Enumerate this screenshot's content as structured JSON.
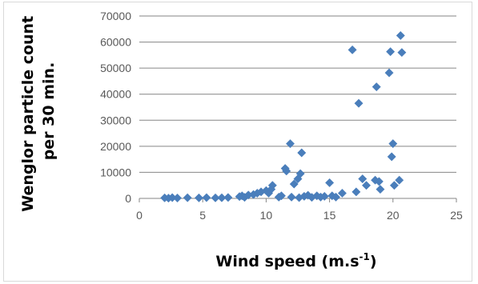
{
  "chart_data": {
    "type": "scatter",
    "title": "",
    "xlabel": "Wind speed (m.s-1)",
    "xlabel_parts": {
      "main": "Wind speed (m.s",
      "sup": "-1",
      "close": ")"
    },
    "ylabel_lines": [
      "Wenglor particle count",
      "per 30 min."
    ],
    "xlim": [
      0,
      25
    ],
    "ylim": [
      0,
      70000
    ],
    "xticks": [
      0,
      5,
      10,
      15,
      20,
      25
    ],
    "yticks": [
      0,
      10000,
      20000,
      30000,
      40000,
      50000,
      60000,
      70000
    ],
    "xtick_labels": [
      "0",
      "5",
      "10",
      "15",
      "20",
      "25"
    ],
    "ytick_labels": [
      "0",
      "10000",
      "20000",
      "30000",
      "40000",
      "50000",
      "60000",
      "70000"
    ],
    "grid": "horizontal",
    "legend": "none",
    "marker": "diamond",
    "marker_color": "#4a7ebb",
    "gridline_color": "#868686",
    "points": [
      {
        "x": 2.0,
        "y": 200
      },
      {
        "x": 2.3,
        "y": 100
      },
      {
        "x": 2.6,
        "y": 300
      },
      {
        "x": 3.0,
        "y": 150
      },
      {
        "x": 3.8,
        "y": 250
      },
      {
        "x": 4.7,
        "y": 200
      },
      {
        "x": 5.3,
        "y": 300
      },
      {
        "x": 6.0,
        "y": 200
      },
      {
        "x": 6.5,
        "y": 250
      },
      {
        "x": 7.0,
        "y": 350
      },
      {
        "x": 7.9,
        "y": 700
      },
      {
        "x": 8.1,
        "y": 1000
      },
      {
        "x": 8.3,
        "y": 400
      },
      {
        "x": 8.6,
        "y": 1300
      },
      {
        "x": 9.0,
        "y": 1500
      },
      {
        "x": 9.3,
        "y": 2000
      },
      {
        "x": 9.6,
        "y": 2500
      },
      {
        "x": 10.0,
        "y": 3000
      },
      {
        "x": 10.2,
        "y": 2000
      },
      {
        "x": 10.5,
        "y": 5000
      },
      {
        "x": 10.4,
        "y": 3500
      },
      {
        "x": 11.0,
        "y": 500
      },
      {
        "x": 11.2,
        "y": 1000
      },
      {
        "x": 11.5,
        "y": 11500
      },
      {
        "x": 11.6,
        "y": 10500
      },
      {
        "x": 11.9,
        "y": 21000
      },
      {
        "x": 12.0,
        "y": 500
      },
      {
        "x": 12.2,
        "y": 5500
      },
      {
        "x": 12.5,
        "y": 7500
      },
      {
        "x": 12.7,
        "y": 9500
      },
      {
        "x": 12.8,
        "y": 17500
      },
      {
        "x": 12.6,
        "y": 300
      },
      {
        "x": 13.0,
        "y": 800
      },
      {
        "x": 13.3,
        "y": 1200
      },
      {
        "x": 13.6,
        "y": 400
      },
      {
        "x": 14.0,
        "y": 1000
      },
      {
        "x": 14.3,
        "y": 500
      },
      {
        "x": 14.6,
        "y": 800
      },
      {
        "x": 15.0,
        "y": 6000
      },
      {
        "x": 15.2,
        "y": 1000
      },
      {
        "x": 15.5,
        "y": 500
      },
      {
        "x": 16.0,
        "y": 2000
      },
      {
        "x": 16.8,
        "y": 57000
      },
      {
        "x": 17.1,
        "y": 2500
      },
      {
        "x": 17.3,
        "y": 36500
      },
      {
        "x": 17.6,
        "y": 7500
      },
      {
        "x": 17.9,
        "y": 5000
      },
      {
        "x": 18.6,
        "y": 7000
      },
      {
        "x": 18.7,
        "y": 42800
      },
      {
        "x": 18.9,
        "y": 6500
      },
      {
        "x": 19.0,
        "y": 3500
      },
      {
        "x": 19.7,
        "y": 48200
      },
      {
        "x": 19.8,
        "y": 56300
      },
      {
        "x": 19.9,
        "y": 16000
      },
      {
        "x": 20.0,
        "y": 21000
      },
      {
        "x": 20.1,
        "y": 5000
      },
      {
        "x": 20.5,
        "y": 7000
      },
      {
        "x": 20.6,
        "y": 62500
      },
      {
        "x": 20.7,
        "y": 56000
      }
    ]
  }
}
